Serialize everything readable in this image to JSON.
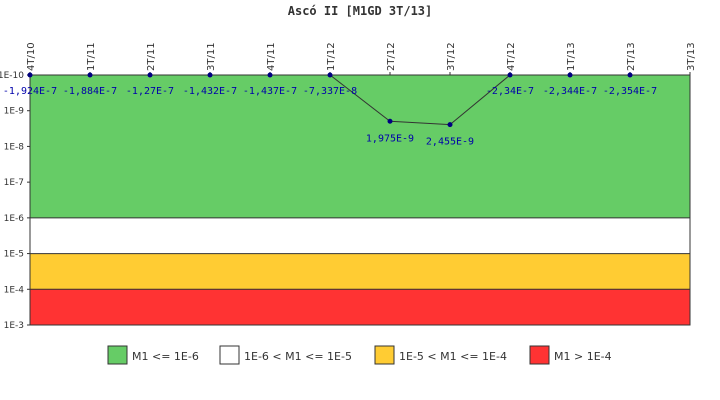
{
  "chart_data": {
    "type": "line",
    "title": "Ascó II [M1GD 3T/13]",
    "categories": [
      "4T/10",
      "1T/11",
      "2T/11",
      "3T/11",
      "4T/11",
      "1T/12",
      "2T/12",
      "3T/12",
      "4T/12",
      "1T/13",
      "2T/13",
      "3T/13"
    ],
    "series": [
      {
        "values": [
          -1.924e-07,
          -1.884e-07,
          -1.27e-07,
          -1.432e-07,
          -1.437e-07,
          -7.337e-08,
          1.975e-09,
          2.455e-09,
          -2.34e-07,
          -2.344e-07,
          -2.354e-07,
          null
        ],
        "labels": [
          "-1,924E-7",
          "-1,884E-7",
          "-1,27E-7",
          "-1,432E-7",
          "-1,437E-7",
          "-7,337E-8",
          "1,975E-9",
          "2,455E-9",
          "-2,34E-7",
          "-2,344E-7",
          "-2,354E-7",
          ""
        ]
      }
    ],
    "yscale": "log",
    "yaxis_reversed": true,
    "ylim": [
      1e-10,
      0.001
    ],
    "yticks": [
      "1E-10",
      "1E-9",
      "1E-8",
      "1E-7",
      "1E-6",
      "1E-5",
      "1E-4",
      "1E-3"
    ],
    "bands": [
      {
        "from": 1e-10,
        "to": 1e-06,
        "color": "#66cc66"
      },
      {
        "from": 1e-06,
        "to": 1e-05,
        "color": "#ffffff"
      },
      {
        "from": 1e-05,
        "to": 0.0001,
        "color": "#ffcc33"
      },
      {
        "from": 0.0001,
        "to": 0.001,
        "color": "#ff3333"
      }
    ],
    "line_color": "#333333",
    "marker_color": "#000080",
    "label_color": "#0000aa",
    "legend": {
      "placement": "bottom",
      "items": [
        {
          "label": "M1 <= 1E-6",
          "color": "#66cc66"
        },
        {
          "label": "1E-6 < M1 <= 1E-5",
          "color": "#ffffff"
        },
        {
          "label": "1E-5 < M1 <= 1E-4",
          "color": "#ffcc33"
        },
        {
          "label": "M1 > 1E-4",
          "color": "#ff3333"
        }
      ]
    }
  }
}
